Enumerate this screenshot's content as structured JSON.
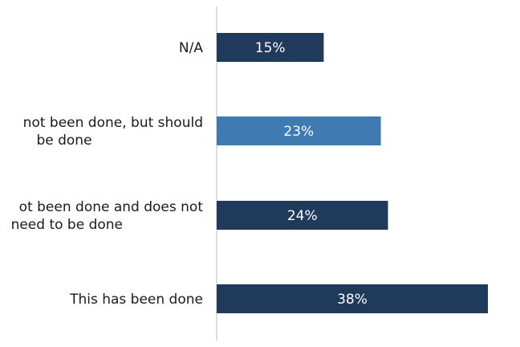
{
  "chart_data": {
    "type": "bar",
    "orientation": "horizontal",
    "categories": [
      "N/A",
      "This has not been done, but should be done",
      "This has not been done and does not need to be done",
      "This has been done"
    ],
    "category_lines": [
      [
        "N/A"
      ],
      [
        "not been done, but should",
        "be done"
      ],
      [
        "ot been done and does not",
        "need to be done"
      ],
      [
        "This has been done"
      ]
    ],
    "values": [
      15,
      23,
      24,
      38
    ],
    "value_labels": [
      "15%",
      "23%",
      "24%",
      "38%"
    ],
    "bar_colors": [
      "#1f3a5a",
      "#3f7ab0",
      "#1f3a5a",
      "#1f3a5a"
    ],
    "label_color": "#ffffff",
    "axis_color": "#c8c8c8",
    "text_color": "#1a1a1a",
    "xlim": [
      0,
      40
    ],
    "grid": false,
    "legend": "none",
    "title": "",
    "xlabel": "",
    "ylabel": ""
  }
}
